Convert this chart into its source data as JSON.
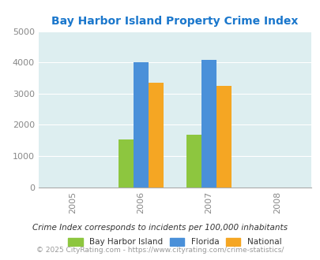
{
  "title": "Bay Harbor Island Property Crime Index",
  "title_color": "#1a77cc",
  "bar_groups": {
    "2006": {
      "Bay Harbor Island": 1520,
      "Florida": 4000,
      "National": 3350
    },
    "2007": {
      "Bay Harbor Island": 1690,
      "Florida": 4090,
      "National": 3250
    }
  },
  "colors": {
    "Bay Harbor Island": "#8dc63f",
    "Florida": "#4a90d9",
    "National": "#f5a623"
  },
  "ylim": [
    0,
    5000
  ],
  "yticks": [
    0,
    1000,
    2000,
    3000,
    4000,
    5000
  ],
  "legend_labels": [
    "Bay Harbor Island",
    "Florida",
    "National"
  ],
  "footnote1": "Crime Index corresponds to incidents per 100,000 inhabitants",
  "footnote2": "© 2025 CityRating.com - https://www.cityrating.com/crime-statistics/",
  "bg_color": "#ddeef0",
  "bar_width": 0.22,
  "x_tick_positions": [
    0,
    1,
    2,
    3
  ],
  "x_tick_labels": [
    "2005",
    "2006",
    "2007",
    "2008"
  ],
  "group_positions": [
    1,
    2
  ]
}
